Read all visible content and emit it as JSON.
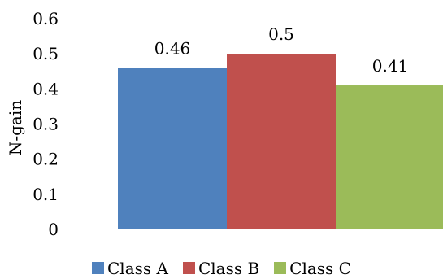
{
  "chart_data": {
    "type": "bar",
    "title": "",
    "xlabel": "",
    "ylabel": "N-gain",
    "ylim": [
      0,
      0.6
    ],
    "yticks": [
      0,
      0.1,
      0.2,
      0.3,
      0.4,
      0.5,
      0.6
    ],
    "ytick_labels": [
      "0",
      "0.1",
      "0.2",
      "0.3",
      "0.4",
      "0.5",
      "0.6"
    ],
    "grid": false,
    "legend_position": "bottom",
    "series": [
      {
        "name": "Class A",
        "value": 0.46,
        "label": "0.46",
        "color": "#4F81BD"
      },
      {
        "name": "Class B",
        "value": 0.5,
        "label": "0.5",
        "color": "#C0504D"
      },
      {
        "name": "Class C",
        "value": 0.41,
        "label": "0.41",
        "color": "#9BBB59"
      }
    ]
  }
}
